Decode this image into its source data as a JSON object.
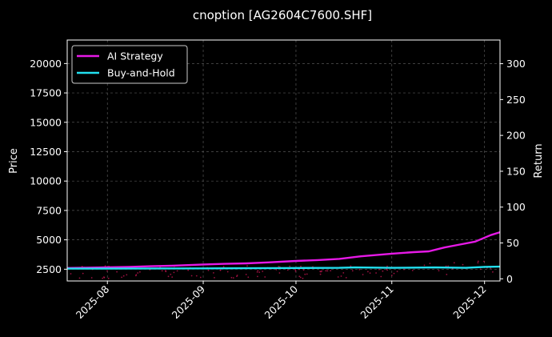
{
  "title": "cnoption [AG2604C7600.SHF]",
  "colors": {
    "background": "#000000",
    "foreground": "#ffffff",
    "grid": "#555555",
    "strategy": "#e619e6",
    "buyhold": "#22e0f0",
    "scatter": "#c0154f"
  },
  "chart_data": {
    "type": "line",
    "title": "cnoption [AG2604C7600.SHF]",
    "xlabel": "",
    "ylabel": "Price",
    "ylabel_right": "Return",
    "grid": true,
    "legend_position": "top-left",
    "x_range": [
      "2025-07-19",
      "2025-12-06"
    ],
    "ylim_left": [
      1500,
      22000
    ],
    "ylim_right": [
      -3,
      333
    ],
    "x_ticks": [
      "2025-08",
      "2025-09",
      "2025-10",
      "2025-11",
      "2025-12"
    ],
    "x_tick_dates": [
      "2025-08-01",
      "2025-09-01",
      "2025-10-01",
      "2025-11-01",
      "2025-12-01"
    ],
    "y_ticks_left": [
      2500,
      5000,
      7500,
      10000,
      12500,
      15000,
      17500,
      20000
    ],
    "y_ticks_right": [
      0,
      50,
      100,
      150,
      200,
      250,
      300
    ],
    "series": [
      {
        "name": "AI Strategy",
        "axis": "left",
        "color": "#e619e6",
        "x": [
          "2025-07-19",
          "2025-07-25",
          "2025-08-01",
          "2025-08-08",
          "2025-08-15",
          "2025-08-22",
          "2025-09-01",
          "2025-09-08",
          "2025-09-15",
          "2025-09-22",
          "2025-10-01",
          "2025-10-08",
          "2025-10-15",
          "2025-10-22",
          "2025-11-01",
          "2025-11-08",
          "2025-11-13",
          "2025-11-18",
          "2025-11-23",
          "2025-11-28",
          "2025-12-03",
          "2025-12-06"
        ],
        "values": [
          2600,
          2630,
          2660,
          2700,
          2750,
          2800,
          2900,
          2960,
          3000,
          3080,
          3200,
          3280,
          3380,
          3600,
          3820,
          3950,
          4020,
          4350,
          4600,
          4850,
          5400,
          5650
        ]
      },
      {
        "name": "Buy-and-Hold",
        "axis": "left",
        "color": "#22e0f0",
        "x": [
          "2025-07-19",
          "2025-08-01",
          "2025-08-15",
          "2025-09-01",
          "2025-09-15",
          "2025-10-01",
          "2025-10-15",
          "2025-10-20",
          "2025-11-01",
          "2025-11-15",
          "2025-11-25",
          "2025-12-01",
          "2025-12-06"
        ],
        "values": [
          2550,
          2550,
          2560,
          2570,
          2580,
          2600,
          2620,
          2650,
          2620,
          2650,
          2620,
          2700,
          2720
        ]
      }
    ]
  }
}
